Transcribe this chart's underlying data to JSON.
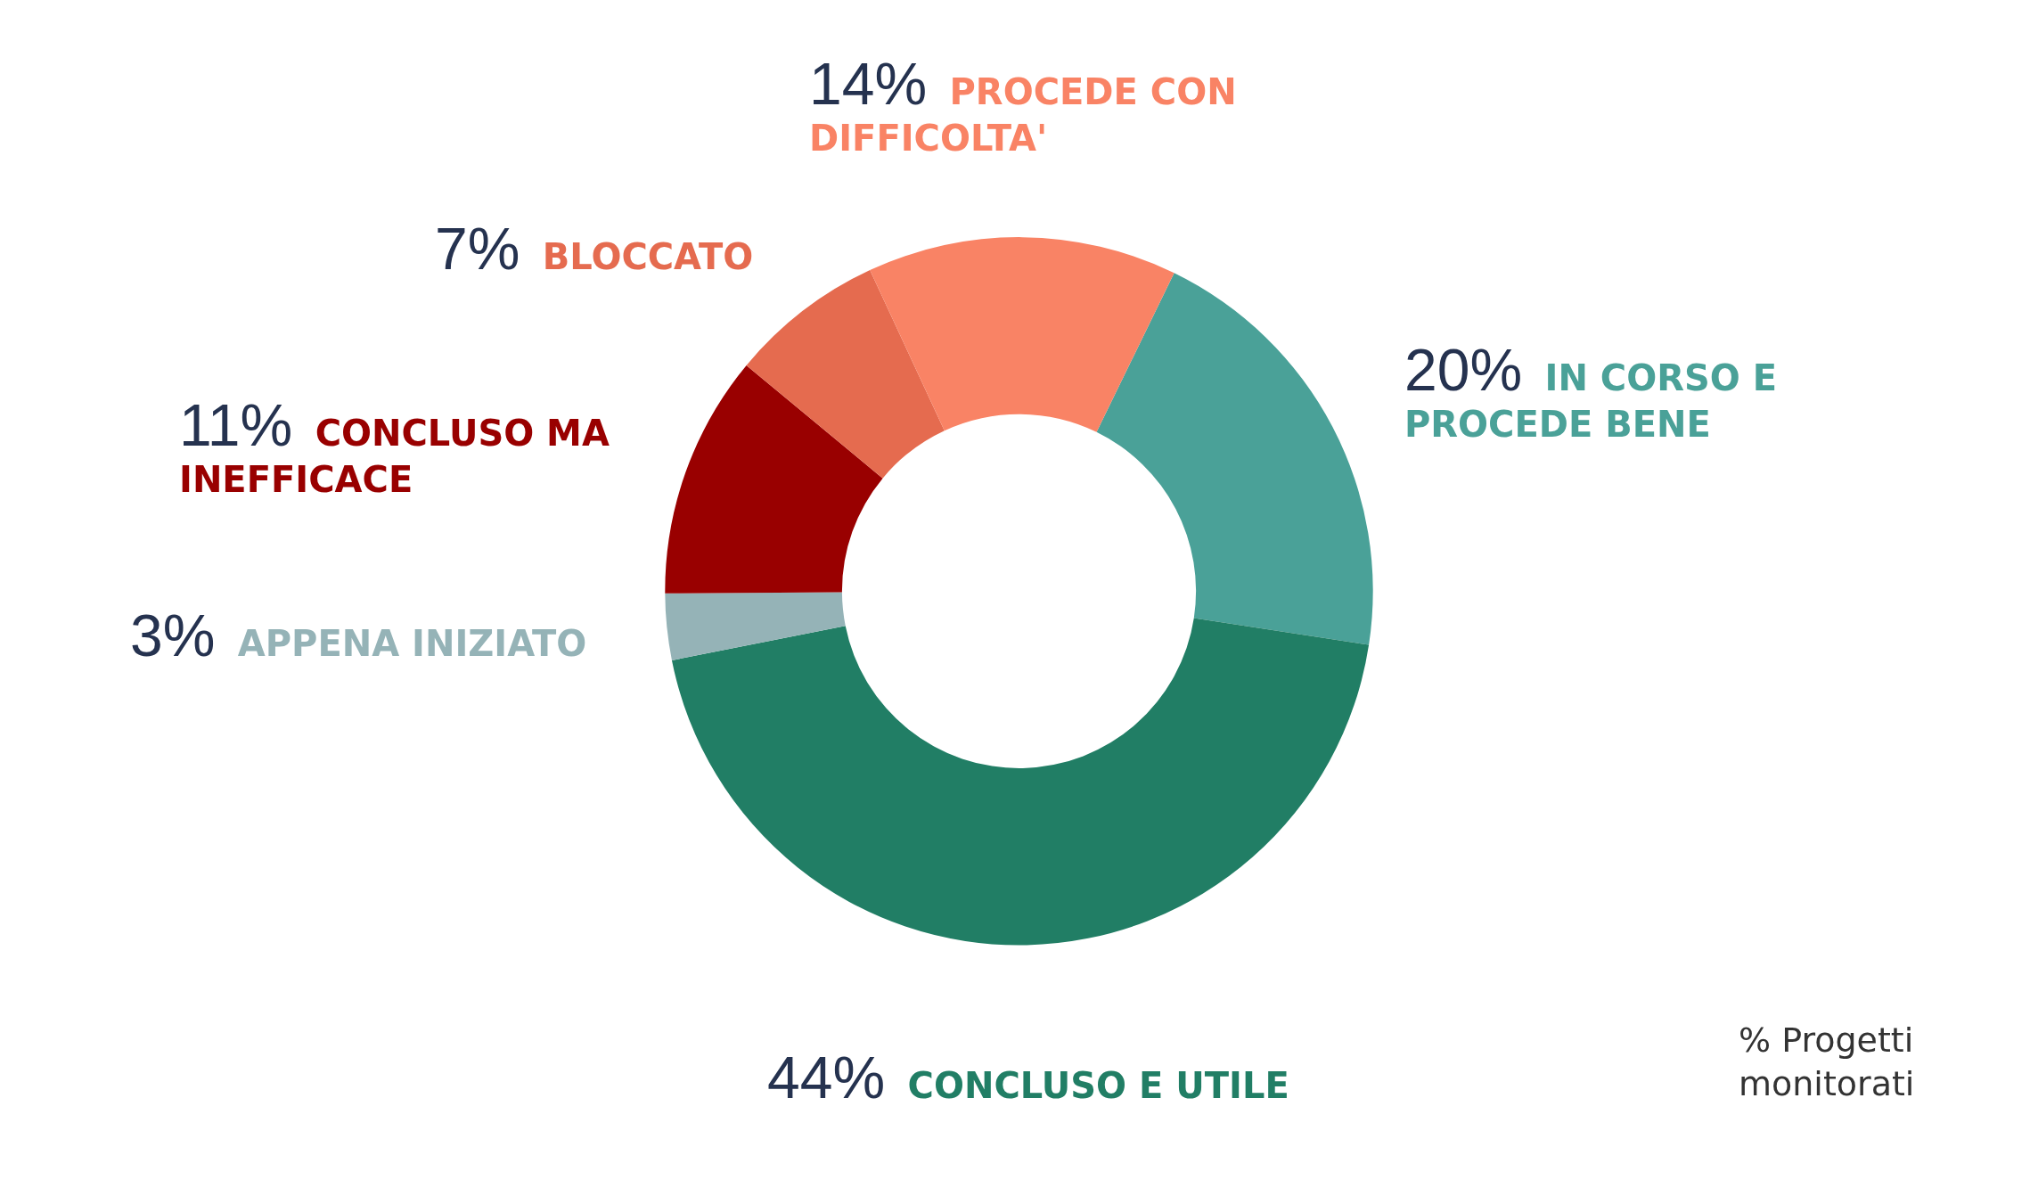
{
  "chart_data": {
    "type": "donut",
    "categories": [
      "IN CORSO E PROCEDE BENE",
      "CONCLUSO E UTILE",
      "APPENA INIZIATO",
      "CONCLUSO MA INEFFICACE",
      "BLOCCATO",
      "PROCEDE CON DIFFICOLTA'"
    ],
    "values": [
      20,
      44,
      3,
      11,
      7,
      14
    ],
    "value_labels": [
      "20%",
      "44%",
      "3%",
      "11%",
      "7%",
      "14%"
    ],
    "colors": [
      "#4aa198",
      "#217e65",
      "#95b3b7",
      "#990000",
      "#e56b4f",
      "#f98365"
    ],
    "annotations": [
      "% Progetti monitorati"
    ],
    "legend": false
  }
}
